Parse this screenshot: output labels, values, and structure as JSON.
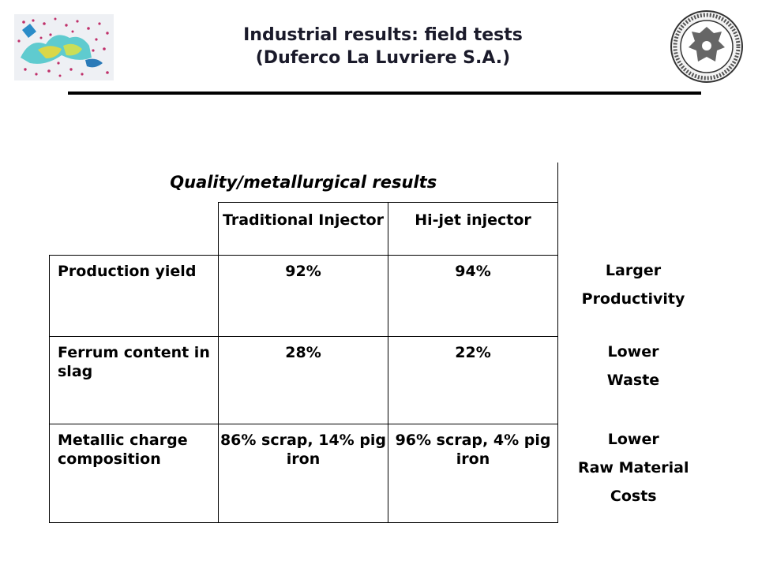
{
  "header": {
    "title_line1": "Industrial results: field tests",
    "title_line2": "(Duferco La Luvriere S.A.)",
    "left_logo_icon": "molecular-simulation-image",
    "right_logo_icon": "university-seal"
  },
  "table": {
    "caption": "Quality/metallurgical results",
    "columns": [
      "Traditional Injector",
      "Hi-jet injector"
    ],
    "rows": [
      {
        "label": "Production yield",
        "traditional": "92%",
        "hijet": "94%",
        "effect_line1": "Larger",
        "effect_line2": "Productivity",
        "effect_line3": ""
      },
      {
        "label": "Ferrum content in slag",
        "traditional": "28%",
        "hijet": "22%",
        "effect_line1": "Lower",
        "effect_line2": "Waste",
        "effect_line3": ""
      },
      {
        "label": "Metallic charge composition",
        "traditional": "86% scrap, 14% pig iron",
        "hijet": "96% scrap, 4% pig iron",
        "effect_line1": "Lower",
        "effect_line2": "Raw Material",
        "effect_line3": "Costs"
      }
    ]
  },
  "colors": {
    "text": "#000000",
    "title": "#1a1a2a",
    "rule": "#000000"
  }
}
